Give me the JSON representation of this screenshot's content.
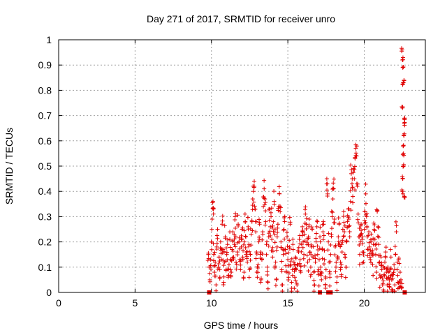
{
  "chart_data": {
    "type": "scatter",
    "title": "Day 271 of 2017, SRMTID for receiver unro",
    "xlabel": "GPS time / hours",
    "ylabel": "SRMTID / TECUs",
    "xlim": [
      0,
      24
    ],
    "ylim": [
      0,
      1
    ],
    "xticks": [
      0,
      5,
      10,
      15,
      20
    ],
    "xtick_labels": [
      "0",
      "5",
      "10",
      "15",
      "20"
    ],
    "yticks": [
      0,
      0.1,
      0.2,
      0.3,
      0.4,
      0.5,
      0.6,
      0.7,
      0.8,
      0.9,
      1
    ],
    "ytick_labels": [
      "0",
      "0.1",
      "0.2",
      "0.3",
      "0.4",
      "0.5",
      "0.6",
      "0.7",
      "0.8",
      "0.9",
      "1"
    ],
    "grid": true,
    "series_color": "#e00000",
    "zero_markers_x": [
      9.85,
      17.1,
      17.65,
      17.8,
      22.65
    ],
    "points": [
      [
        9.8,
        0.15
      ],
      [
        9.85,
        0.1
      ],
      [
        9.9,
        0.05
      ],
      [
        9.95,
        0.13
      ],
      [
        10.0,
        0.2
      ],
      [
        10.05,
        0.29
      ],
      [
        10.1,
        0.36
      ],
      [
        10.12,
        0.33
      ],
      [
        10.15,
        0.15
      ],
      [
        10.2,
        0.08
      ],
      [
        10.25,
        0.12
      ],
      [
        10.3,
        0.03
      ],
      [
        10.35,
        0.18
      ],
      [
        10.4,
        0.25
      ],
      [
        10.45,
        0.1
      ],
      [
        10.5,
        0.14
      ],
      [
        10.55,
        0.06
      ],
      [
        10.6,
        0.2
      ],
      [
        10.65,
        0.13
      ],
      [
        10.7,
        0.27
      ],
      [
        10.75,
        0.17
      ],
      [
        10.8,
        0.04
      ],
      [
        10.85,
        0.12
      ],
      [
        10.9,
        0.22
      ],
      [
        10.95,
        0.09
      ],
      [
        11.0,
        0.15
      ],
      [
        11.05,
        0.19
      ],
      [
        11.1,
        0.06
      ],
      [
        11.15,
        0.11
      ],
      [
        11.2,
        0.21
      ],
      [
        11.25,
        0.13
      ],
      [
        11.3,
        0.08
      ],
      [
        11.35,
        0.17
      ],
      [
        11.4,
        0.24
      ],
      [
        11.45,
        0.14
      ],
      [
        11.5,
        0.19
      ],
      [
        11.55,
        0.3
      ],
      [
        11.6,
        0.22
      ],
      [
        11.65,
        0.11
      ],
      [
        11.7,
        0.16
      ],
      [
        11.75,
        0.27
      ],
      [
        11.8,
        0.2
      ],
      [
        11.85,
        0.13
      ],
      [
        11.9,
        0.09
      ],
      [
        11.95,
        0.18
      ],
      [
        12.0,
        0.25
      ],
      [
        12.05,
        0.14
      ],
      [
        12.1,
        0.06
      ],
      [
        12.15,
        0.2
      ],
      [
        12.2,
        0.31
      ],
      [
        12.25,
        0.22
      ],
      [
        12.3,
        0.16
      ],
      [
        12.35,
        0.12
      ],
      [
        12.4,
        0.26
      ],
      [
        12.45,
        0.19
      ],
      [
        12.5,
        0.09
      ],
      [
        12.55,
        0.15
      ],
      [
        12.6,
        0.23
      ],
      [
        12.65,
        0.28
      ],
      [
        12.7,
        0.37
      ],
      [
        12.75,
        0.4
      ],
      [
        12.8,
        0.44
      ],
      [
        12.85,
        0.33
      ],
      [
        12.9,
        0.24
      ],
      [
        12.95,
        0.16
      ],
      [
        13.0,
        0.06
      ],
      [
        13.05,
        0.11
      ],
      [
        13.1,
        0.2
      ],
      [
        13.15,
        0.27
      ],
      [
        13.2,
        0.15
      ],
      [
        13.25,
        0.05
      ],
      [
        13.3,
        0.13
      ],
      [
        13.35,
        0.24
      ],
      [
        13.4,
        0.34
      ],
      [
        13.45,
        0.41
      ],
      [
        13.5,
        0.37
      ],
      [
        13.55,
        0.28
      ],
      [
        13.6,
        0.19
      ],
      [
        13.65,
        0.1
      ],
      [
        13.7,
        0.04
      ],
      [
        13.75,
        0.22
      ],
      [
        13.8,
        0.33
      ],
      [
        13.85,
        0.26
      ],
      [
        13.9,
        0.3
      ],
      [
        13.95,
        0.21
      ],
      [
        14.0,
        0.14
      ],
      [
        14.05,
        0.28
      ],
      [
        14.1,
        0.36
      ],
      [
        14.15,
        0.23
      ],
      [
        14.2,
        0.12
      ],
      [
        14.25,
        0.05
      ],
      [
        14.3,
        0.18
      ],
      [
        14.35,
        0.27
      ],
      [
        14.4,
        0.34
      ],
      [
        14.45,
        0.39
      ],
      [
        14.5,
        0.32
      ],
      [
        14.55,
        0.2
      ],
      [
        14.6,
        0.09
      ],
      [
        14.65,
        0.03
      ],
      [
        14.7,
        0.15
      ],
      [
        14.75,
        0.25
      ],
      [
        14.8,
        0.3
      ],
      [
        14.85,
        0.17
      ],
      [
        14.9,
        0.08
      ],
      [
        14.95,
        0.22
      ],
      [
        15.0,
        0.13
      ],
      [
        15.05,
        0.06
      ],
      [
        15.1,
        0.18
      ],
      [
        15.15,
        0.27
      ],
      [
        15.2,
        0.11
      ],
      [
        15.25,
        0.04
      ],
      [
        15.3,
        0.09
      ],
      [
        15.35,
        0.17
      ],
      [
        15.4,
        0.12
      ],
      [
        15.45,
        0.06
      ],
      [
        15.5,
        0.14
      ],
      [
        15.55,
        0.09
      ],
      [
        15.6,
        0.03
      ],
      [
        15.65,
        0.11
      ],
      [
        15.7,
        0.16
      ],
      [
        15.75,
        0.21
      ],
      [
        15.8,
        0.13
      ],
      [
        15.85,
        0.08
      ],
      [
        15.9,
        0.19
      ],
      [
        15.95,
        0.26
      ],
      [
        16.0,
        0.2
      ],
      [
        16.05,
        0.15
      ],
      [
        16.1,
        0.23
      ],
      [
        16.15,
        0.31
      ],
      [
        16.2,
        0.27
      ],
      [
        16.25,
        0.19
      ],
      [
        16.3,
        0.12
      ],
      [
        16.35,
        0.22
      ],
      [
        16.4,
        0.29
      ],
      [
        16.45,
        0.16
      ],
      [
        16.5,
        0.1
      ],
      [
        16.55,
        0.18
      ],
      [
        16.6,
        0.25
      ],
      [
        16.65,
        0.14
      ],
      [
        16.7,
        0.08
      ],
      [
        16.75,
        0.03
      ],
      [
        16.8,
        0.12
      ],
      [
        16.85,
        0.2
      ],
      [
        16.9,
        0.26
      ],
      [
        16.95,
        0.15
      ],
      [
        17.0,
        0.07
      ],
      [
        17.05,
        0.13
      ],
      [
        17.1,
        0.22
      ],
      [
        17.15,
        0.1
      ],
      [
        17.2,
        0.05
      ],
      [
        17.25,
        0.17
      ],
      [
        17.3,
        0.24
      ],
      [
        17.35,
        0.27
      ],
      [
        17.4,
        0.13
      ],
      [
        17.45,
        0.03
      ],
      [
        17.5,
        0.09
      ],
      [
        17.55,
        0.45
      ],
      [
        17.6,
        0.39
      ],
      [
        17.65,
        0.2
      ],
      [
        17.7,
        0.12
      ],
      [
        17.75,
        0.06
      ],
      [
        17.8,
        0.15
      ],
      [
        17.85,
        0.23
      ],
      [
        17.9,
        0.3
      ],
      [
        17.95,
        0.37
      ],
      [
        18.0,
        0.41
      ],
      [
        18.05,
        0.29
      ],
      [
        18.1,
        0.18
      ],
      [
        18.15,
        0.1
      ],
      [
        18.2,
        0.04
      ],
      [
        18.25,
        0.14
      ],
      [
        18.3,
        0.22
      ],
      [
        18.35,
        0.27
      ],
      [
        18.4,
        0.19
      ],
      [
        18.45,
        0.12
      ],
      [
        18.5,
        0.07
      ],
      [
        18.55,
        0.16
      ],
      [
        18.6,
        0.25
      ],
      [
        18.65,
        0.32
      ],
      [
        18.7,
        0.24
      ],
      [
        18.75,
        0.14
      ],
      [
        18.8,
        0.1
      ],
      [
        18.85,
        0.2
      ],
      [
        18.9,
        0.28
      ],
      [
        18.95,
        0.33
      ],
      [
        19.0,
        0.29
      ],
      [
        19.05,
        0.22
      ],
      [
        19.1,
        0.36
      ],
      [
        19.15,
        0.47
      ],
      [
        19.2,
        0.43
      ],
      [
        19.25,
        0.38
      ],
      [
        19.3,
        0.49
      ],
      [
        19.35,
        0.45
      ],
      [
        19.4,
        0.53
      ],
      [
        19.45,
        0.57
      ],
      [
        19.5,
        0.54
      ],
      [
        19.55,
        0.42
      ],
      [
        19.6,
        0.31
      ],
      [
        19.65,
        0.22
      ],
      [
        19.7,
        0.15
      ],
      [
        19.75,
        0.2
      ],
      [
        19.8,
        0.27
      ],
      [
        19.85,
        0.21
      ],
      [
        19.9,
        0.16
      ],
      [
        19.95,
        0.12
      ],
      [
        20.0,
        0.25
      ],
      [
        20.05,
        0.32
      ],
      [
        20.1,
        0.39
      ],
      [
        20.15,
        0.3
      ],
      [
        20.2,
        0.22
      ],
      [
        20.25,
        0.17
      ],
      [
        20.3,
        0.24
      ],
      [
        20.35,
        0.18
      ],
      [
        20.4,
        0.13
      ],
      [
        20.45,
        0.2
      ],
      [
        20.5,
        0.16
      ],
      [
        20.55,
        0.11
      ],
      [
        20.6,
        0.19
      ],
      [
        20.65,
        0.25
      ],
      [
        20.7,
        0.21
      ],
      [
        20.75,
        0.15
      ],
      [
        20.8,
        0.08
      ],
      [
        20.85,
        0.32
      ],
      [
        20.9,
        0.26
      ],
      [
        20.95,
        0.19
      ],
      [
        21.0,
        0.12
      ],
      [
        21.05,
        0.06
      ],
      [
        21.1,
        0.14
      ],
      [
        21.15,
        0.09
      ],
      [
        21.2,
        0.03
      ],
      [
        21.25,
        0.01
      ],
      [
        21.3,
        0.07
      ],
      [
        21.35,
        0.12
      ],
      [
        21.4,
        0.16
      ],
      [
        21.45,
        0.08
      ],
      [
        21.5,
        0.03
      ],
      [
        21.55,
        0.1
      ],
      [
        21.6,
        0.06
      ],
      [
        21.65,
        0.02
      ],
      [
        21.7,
        0.09
      ],
      [
        21.75,
        0.14
      ],
      [
        21.8,
        0.05
      ],
      [
        21.85,
        0.01
      ],
      [
        21.9,
        0.07
      ],
      [
        21.95,
        0.11
      ],
      [
        22.0,
        0.03
      ],
      [
        22.05,
        0.15
      ],
      [
        22.1,
        0.24
      ],
      [
        22.15,
        0.09
      ],
      [
        22.2,
        0.04
      ],
      [
        22.25,
        0.13
      ],
      [
        22.3,
        0.02
      ],
      [
        22.35,
        0.08
      ],
      [
        22.4,
        0.05
      ],
      [
        22.45,
        0.02
      ],
      [
        22.5,
        0.4
      ],
      [
        22.52,
        0.45
      ],
      [
        22.55,
        0.58
      ],
      [
        22.58,
        0.5
      ],
      [
        22.6,
        0.62
      ],
      [
        22.62,
        0.67
      ],
      [
        22.5,
        0.73
      ],
      [
        22.55,
        0.83
      ],
      [
        22.52,
        0.89
      ],
      [
        22.5,
        0.92
      ],
      [
        22.48,
        0.96
      ],
      [
        22.6,
        0.84
      ],
      [
        22.57,
        0.55
      ],
      [
        22.63,
        0.38
      ],
      [
        22.65,
        0.69
      ]
    ]
  }
}
